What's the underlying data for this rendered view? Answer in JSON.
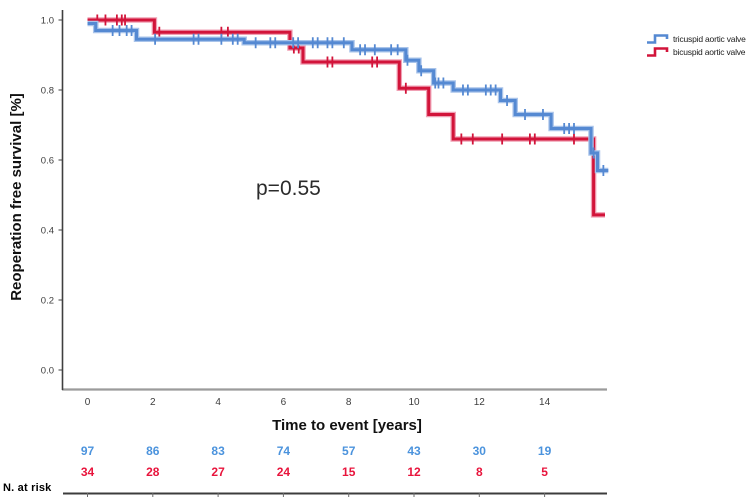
{
  "figure": {
    "y_axis_title": "Reoperation free survival [%]",
    "x_axis_title": "Time to event [years]",
    "p_value_label": "p=0.55",
    "risk_header": "N. at risk"
  },
  "legend": {
    "items": [
      {
        "label": "tricuspid aortic valve",
        "color": "#5589d2"
      },
      {
        "label": "bicuspid aortic valve",
        "color": "#d2143a"
      }
    ]
  },
  "chart_data": {
    "type": "line",
    "subtype": "kaplan-meier-step",
    "title": "",
    "xlabel": "Time to event [years]",
    "ylabel": "Reoperation free survival [%]",
    "annotation": "p=0.55",
    "xlim": [
      0,
      16
    ],
    "ylim": [
      0,
      1.05
    ],
    "xticks": [
      0,
      2,
      4,
      6,
      8,
      10,
      12,
      14
    ],
    "yticks": [
      0.0,
      0.2,
      0.4,
      0.6,
      0.8,
      1.0
    ],
    "grid": false,
    "legend_position": "top-right",
    "series": [
      {
        "name": "tricuspid aortic valve",
        "color": "#5589d2",
        "halo": "#a9c4ea",
        "steps": [
          [
            0,
            0.99
          ],
          [
            0.25,
            0.97
          ],
          [
            1.5,
            0.945
          ],
          [
            4.8,
            0.935
          ],
          [
            8.1,
            0.915
          ],
          [
            9.75,
            0.885
          ],
          [
            10.15,
            0.855
          ],
          [
            10.6,
            0.82
          ],
          [
            11.2,
            0.8
          ],
          [
            12.65,
            0.77
          ],
          [
            13.1,
            0.73
          ],
          [
            14.2,
            0.69
          ],
          [
            15.42,
            0.62
          ],
          [
            15.62,
            0.57
          ]
        ],
        "end_t": 15.95,
        "censor_t": [
          0.77,
          0.98,
          1.2,
          1.35,
          2.07,
          3.25,
          3.4,
          4.1,
          4.45,
          4.6,
          5.15,
          5.6,
          5.75,
          6.3,
          6.45,
          6.9,
          7.05,
          7.35,
          7.5,
          7.85,
          8.35,
          8.5,
          8.8,
          9.3,
          9.5,
          9.8,
          10.22,
          10.65,
          10.75,
          10.9,
          11.5,
          11.65,
          12.2,
          12.35,
          12.5,
          12.85,
          13.4,
          13.95,
          14.6,
          14.75,
          14.9,
          15.5,
          15.8
        ]
      },
      {
        "name": "bicuspid aortic valve",
        "color": "#d2143a",
        "halo": "#f0a0b4",
        "steps": [
          [
            0,
            1.0
          ],
          [
            2.05,
            0.965
          ],
          [
            6.2,
            0.92
          ],
          [
            6.6,
            0.88
          ],
          [
            9.55,
            0.805
          ],
          [
            10.45,
            0.73
          ],
          [
            11.2,
            0.66
          ],
          [
            15.5,
            0.443
          ]
        ],
        "end_t": 15.85,
        "censor_t": [
          0.3,
          0.55,
          0.9,
          1.05,
          1.15,
          2.2,
          4.1,
          4.3,
          6.32,
          6.47,
          7.35,
          7.5,
          8.72,
          8.87,
          9.75,
          11.45,
          11.8,
          12.7,
          13.55,
          13.7,
          14.9
        ]
      }
    ],
    "number_at_risk": {
      "times": [
        0,
        2,
        4,
        6,
        8,
        10,
        12,
        14
      ],
      "rows": [
        {
          "name": "tricuspid aortic valve",
          "color": "#4b93dd",
          "values": [
            97,
            86,
            83,
            74,
            57,
            43,
            30,
            19
          ]
        },
        {
          "name": "bicuspid aortic valve",
          "color": "#e8143c",
          "values": [
            34,
            28,
            27,
            24,
            15,
            12,
            8,
            5
          ]
        }
      ]
    }
  }
}
